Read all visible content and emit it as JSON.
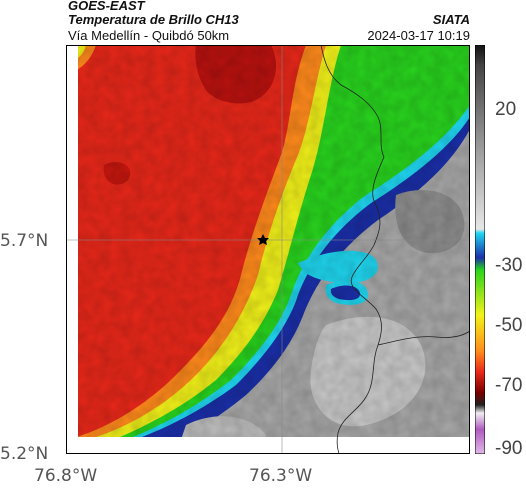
{
  "header": {
    "satellite": "GOES-EAST",
    "product": "Temperatura de Brillo CH13",
    "region": "Vía Medellín - Quibdó 50km",
    "org": "SIATA",
    "timestamp": "2024-03-17 10:19"
  },
  "axes": {
    "y_ticks": [
      {
        "label": "5.7°N",
        "value": 5.7
      },
      {
        "label": "5.2°N",
        "value": 5.2
      }
    ],
    "x_ticks": [
      {
        "label": "76.8°W",
        "value": -76.8
      },
      {
        "label": "76.3°W",
        "value": -76.3
      }
    ]
  },
  "colorbar": {
    "ticks": [
      {
        "label": "20",
        "value": 20
      },
      {
        "label": "-30",
        "value": -30
      },
      {
        "label": "-50",
        "value": -50
      },
      {
        "label": "-70",
        "value": -70
      },
      {
        "label": "-90",
        "value": -90
      }
    ]
  },
  "colors": {
    "cold_red": "#e8281a",
    "deep_red": "#b8120f",
    "orange": "#ff8a1c",
    "yellow": "#f2f21a",
    "green": "#29d41e",
    "cyan": "#1fd6ef",
    "blue": "#1b2fa8",
    "warm_gray": "#a8a8a8"
  }
}
